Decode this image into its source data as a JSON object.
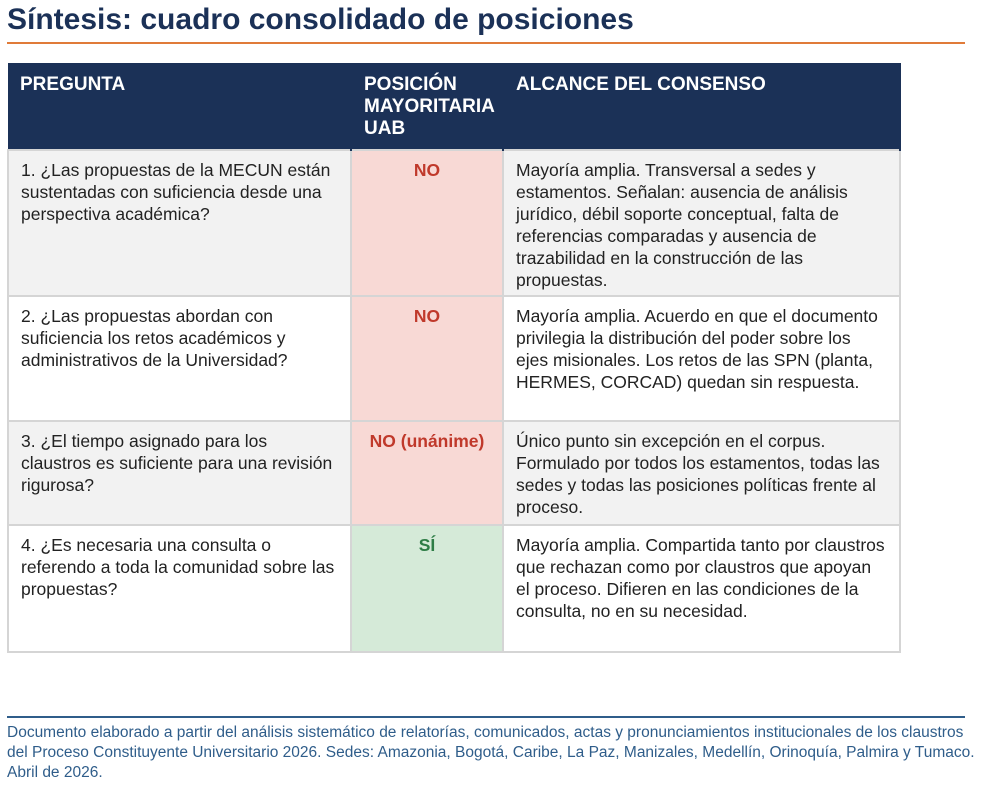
{
  "title": "Síntesis: cuadro consolidado de posiciones",
  "table": {
    "headers": {
      "pregunta": "PREGUNTA",
      "posicion": "POSICIÓN MAYORITARIA UAB",
      "alcance": "ALCANCE DEL CONSENSO"
    },
    "rows": [
      {
        "pregunta": "1. ¿Las propuestas de la MECUN están sustentadas con suficiencia desde una perspectiva académica?",
        "posicion": "NO",
        "alcance": "Mayoría amplia. Transversal a sedes y estamentos. Señalan: ausencia de análisis jurídico, débil soporte conceptual, falta de referencias comparadas y ausencia de trazabilidad en la construcción de las propuestas."
      },
      {
        "pregunta": "2. ¿Las propuestas abordan con suficiencia los retos académicos y administrativos de la Universidad?",
        "posicion": "NO",
        "alcance": "Mayoría amplia. Acuerdo en que el documento privilegia la distribución del poder sobre los ejes misionales. Los retos de las SPN (planta, HERMES, CORCAD) quedan sin respuesta."
      },
      {
        "pregunta": "3. ¿El tiempo asignado para los claustros es suficiente para una revisión rigurosa?",
        "posicion": "NO (unánime)",
        "alcance": "Único punto sin excepción en el corpus. Formulado por todos los estamentos, todas las sedes y todas las posiciones políticas frente al proceso."
      },
      {
        "pregunta": "4. ¿Es necesaria una consulta o referendo a toda la comunidad sobre las propuestas?",
        "posicion": "SÍ",
        "alcance": "Mayoría amplia. Compartida tanto por claustros que rechazan como por claustros que apoyan el proceso. Difieren en las condiciones de la consulta, no en su necesidad."
      }
    ]
  },
  "footer": {
    "note": "Documento elaborado a partir del análisis sistemático de relatorías, comunicados, actas y pronunciamientos institucionales de los claustros del Proceso Constituyente Universitario 2026. Sedes: Amazonia, Bogotá, Caribe, La Paz, Manizales, Medellín, Orinoquía, Palmira y Tumaco. Abril de 2026."
  },
  "colors": {
    "title": "#1b3157",
    "title_rule": "#e07b39",
    "header_bg": "#1b3157",
    "no_bg": "#f8d9d5",
    "no_text": "#c0392b",
    "si_bg": "#d5ead8",
    "si_text": "#2e7d46",
    "footer_text": "#2f5d8a"
  }
}
